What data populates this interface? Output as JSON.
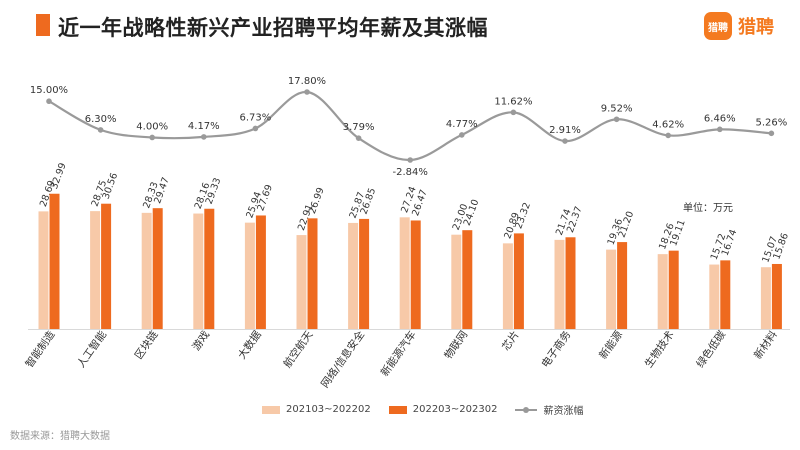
{
  "header": {
    "title": "近一年战略性新兴产业招聘平均年薪及其涨幅",
    "logo_badge": "猎聘",
    "logo_text": "猎聘"
  },
  "unit_label": "单位：万元",
  "source": "数据来源：猎聘大数据",
  "colors": {
    "series1": "#f7c9a8",
    "series2": "#ee6a1f",
    "line": "#9a9a9a"
  },
  "chart_data": {
    "type": "bar",
    "categories": [
      "智能制造",
      "人工智能",
      "区块链",
      "游戏",
      "大数据",
      "航空航天",
      "网络/信息安全",
      "新能源汽车",
      "物联网",
      "芯片",
      "电子商务",
      "新能源",
      "生物技术",
      "绿色低碳",
      "新材料"
    ],
    "series": [
      {
        "name": "202103~202202",
        "values": [
          28.69,
          28.75,
          28.33,
          28.16,
          25.94,
          22.91,
          25.87,
          27.24,
          23.0,
          20.89,
          21.74,
          19.36,
          18.26,
          15.72,
          15.07
        ]
      },
      {
        "name": "202203~202302",
        "values": [
          32.99,
          30.56,
          29.47,
          29.33,
          27.69,
          26.99,
          26.85,
          26.47,
          24.1,
          23.32,
          22.37,
          21.2,
          19.11,
          16.74,
          15.86
        ]
      }
    ],
    "line_series": {
      "name": "薪资涨幅",
      "values": [
        15.0,
        6.3,
        4.0,
        4.17,
        6.73,
        17.8,
        3.79,
        -2.84,
        4.77,
        11.62,
        2.91,
        9.52,
        4.62,
        6.46,
        5.26
      ],
      "labels": [
        "15.00%",
        "6.30%",
        "4.00%",
        "4.17%",
        "6.73%",
        "17.80%",
        "3.79%",
        "-2.84%",
        "4.77%",
        "11.62%",
        "2.91%",
        "9.52%",
        "4.62%",
        "6.46%",
        "5.26%"
      ]
    },
    "bar_labels": [
      [
        "28.69",
        "28.75",
        "28.33",
        "28.16",
        "25.94",
        "22.91",
        "25.87",
        "27.24",
        "23.00",
        "20.89",
        "21.74",
        "19.36",
        "18.26",
        "15.72",
        "15.07"
      ],
      [
        "32.99",
        "30.56",
        "29.47",
        "29.33",
        "27.69",
        "26.99",
        "26.85",
        "26.47",
        "24.10",
        "23.32",
        "22.37",
        "21.20",
        "19.11",
        "16.74",
        "15.86"
      ]
    ],
    "legend_position": "bottom-center"
  }
}
